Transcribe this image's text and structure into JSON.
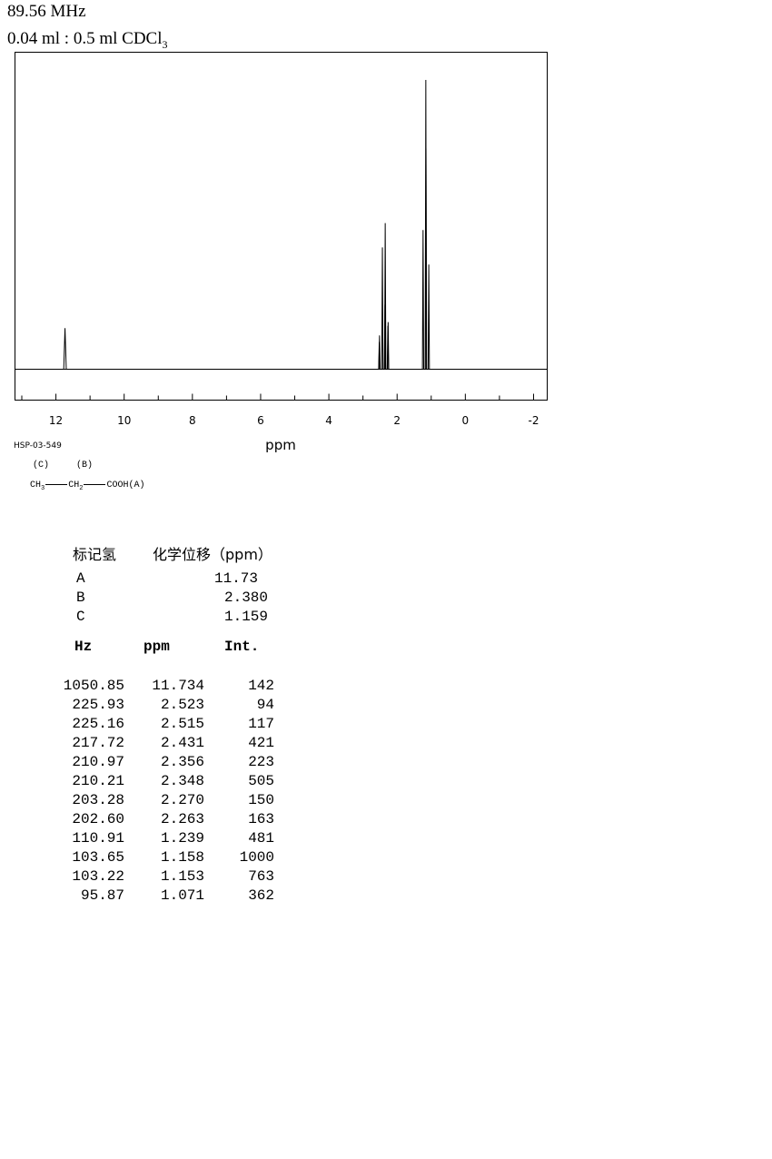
{
  "header": {
    "frequency": "89.56 MHz",
    "sample_text": "0.04 ml : 0.5 ml CDCl",
    "sample_sub": "3"
  },
  "code_id": "HSP-03-549",
  "structure": {
    "label_c": "(C)",
    "label_b": "(B)",
    "ch3": "CH",
    "ch3_sub": "3",
    "ch2": "CH",
    "ch2_sub": "2",
    "cooh": "COOH(A)"
  },
  "assignment": {
    "col1": "标记氢",
    "col2": "化学位移（ppm）",
    "rows": [
      {
        "label": "A",
        "shift": "11.73"
      },
      {
        "label": "B",
        "shift": "2.380"
      },
      {
        "label": "C",
        "shift": "1.159"
      }
    ]
  },
  "peak_table": {
    "headers": [
      "Hz",
      "ppm",
      "Int."
    ],
    "rows": [
      [
        "1050.85",
        "11.734",
        "142"
      ],
      [
        "225.93",
        "2.523",
        "94"
      ],
      [
        "225.16",
        "2.515",
        "117"
      ],
      [
        "217.72",
        "2.431",
        "421"
      ],
      [
        "210.97",
        "2.356",
        "223"
      ],
      [
        "210.21",
        "2.348",
        "505"
      ],
      [
        "203.28",
        "2.270",
        "150"
      ],
      [
        "202.60",
        "2.263",
        "163"
      ],
      [
        "110.91",
        "1.239",
        "481"
      ],
      [
        "103.65",
        "1.158",
        "1000"
      ],
      [
        "103.22",
        "1.153",
        "763"
      ],
      [
        "95.87",
        "1.071",
        "362"
      ]
    ]
  },
  "chart_data": {
    "type": "line",
    "xlabel": "ppm",
    "xlim": [
      13.2,
      -2.4
    ],
    "x_reversed": true,
    "ylim": [
      0,
      1000
    ],
    "grid": false,
    "ticks": [
      12,
      10,
      8,
      6,
      4,
      2,
      0,
      -2
    ],
    "tick_labels": [
      "12",
      "10",
      "8",
      "6",
      "4",
      "2",
      "0",
      "-2"
    ],
    "peaks": [
      {
        "ppm": 11.734,
        "intensity": 142
      },
      {
        "ppm": 2.523,
        "intensity": 94
      },
      {
        "ppm": 2.515,
        "intensity": 117
      },
      {
        "ppm": 2.431,
        "intensity": 421
      },
      {
        "ppm": 2.356,
        "intensity": 223
      },
      {
        "ppm": 2.348,
        "intensity": 505
      },
      {
        "ppm": 2.27,
        "intensity": 150
      },
      {
        "ppm": 2.263,
        "intensity": 163
      },
      {
        "ppm": 1.239,
        "intensity": 481
      },
      {
        "ppm": 1.158,
        "intensity": 1000
      },
      {
        "ppm": 1.153,
        "intensity": 763
      },
      {
        "ppm": 1.071,
        "intensity": 362
      }
    ],
    "line_color": "#000000"
  }
}
